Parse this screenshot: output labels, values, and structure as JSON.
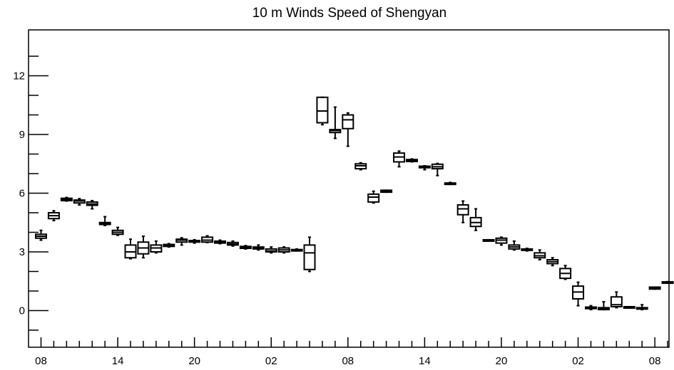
{
  "chart_data": {
    "type": "box",
    "title": "10 m Winds Speed of Shengyan",
    "xlabel": "",
    "ylabel": "",
    "ylim": [
      -2,
      14.3
    ],
    "yticks": [
      0,
      3,
      6,
      9,
      12
    ],
    "ytick_labels": [
      "0",
      "3",
      "6",
      "9",
      "12"
    ],
    "xticks": [
      "08",
      "14",
      "20",
      "02",
      "08",
      "14",
      "20",
      "02",
      "08"
    ],
    "xtick_positions": [
      0,
      6,
      12,
      18,
      24,
      30,
      36,
      42,
      48
    ],
    "xlim": [
      -1,
      49
    ],
    "grid": false,
    "boxes": [
      {
        "x": 0,
        "min": 3.6,
        "q1": 3.7,
        "median": 3.8,
        "q3": 3.9,
        "max": 4.1
      },
      {
        "x": 1,
        "min": 4.6,
        "q1": 4.7,
        "median": 4.85,
        "q3": 5.0,
        "max": 5.1
      },
      {
        "x": 2,
        "min": 5.6,
        "q1": 5.62,
        "median": 5.68,
        "q3": 5.74,
        "max": 5.78
      },
      {
        "x": 3,
        "min": 5.4,
        "q1": 5.5,
        "median": 5.6,
        "q3": 5.65,
        "max": 5.72
      },
      {
        "x": 4,
        "min": 5.2,
        "q1": 5.38,
        "median": 5.45,
        "q3": 5.55,
        "max": 5.62
      },
      {
        "x": 5,
        "min": 4.35,
        "q1": 4.4,
        "median": 4.45,
        "q3": 4.5,
        "max": 4.8
      },
      {
        "x": 6,
        "min": 3.85,
        "q1": 3.9,
        "median": 4.0,
        "q3": 4.1,
        "max": 4.25
      },
      {
        "x": 7,
        "min": 2.65,
        "q1": 2.7,
        "median": 3.0,
        "q3": 3.35,
        "max": 3.65
      },
      {
        "x": 8,
        "min": 2.7,
        "q1": 2.9,
        "median": 3.2,
        "q3": 3.5,
        "max": 3.8
      },
      {
        "x": 9,
        "min": 2.95,
        "q1": 3.0,
        "median": 3.2,
        "q3": 3.35,
        "max": 3.55
      },
      {
        "x": 10,
        "min": 3.25,
        "q1": 3.28,
        "median": 3.32,
        "q3": 3.38,
        "max": 3.42
      },
      {
        "x": 11,
        "min": 3.35,
        "q1": 3.5,
        "median": 3.6,
        "q3": 3.65,
        "max": 3.72
      },
      {
        "x": 12,
        "min": 3.45,
        "q1": 3.5,
        "median": 3.55,
        "q3": 3.58,
        "max": 3.62
      },
      {
        "x": 13,
        "min": 3.48,
        "q1": 3.5,
        "median": 3.6,
        "q3": 3.75,
        "max": 3.82
      },
      {
        "x": 14,
        "min": 3.42,
        "q1": 3.45,
        "median": 3.5,
        "q3": 3.55,
        "max": 3.6
      },
      {
        "x": 15,
        "min": 3.3,
        "q1": 3.35,
        "median": 3.4,
        "q3": 3.48,
        "max": 3.55
      },
      {
        "x": 16,
        "min": 3.15,
        "q1": 3.18,
        "median": 3.22,
        "q3": 3.28,
        "max": 3.32
      },
      {
        "x": 17,
        "min": 3.1,
        "q1": 3.15,
        "median": 3.2,
        "q3": 3.25,
        "max": 3.35
      },
      {
        "x": 18,
        "min": 2.95,
        "q1": 3.0,
        "median": 3.05,
        "q3": 3.15,
        "max": 3.25
      },
      {
        "x": 19,
        "min": 2.95,
        "q1": 3.0,
        "median": 3.1,
        "q3": 3.2,
        "max": 3.25
      },
      {
        "x": 20,
        "min": 3.05,
        "q1": 3.08,
        "median": 3.1,
        "q3": 3.12,
        "max": 3.15
      },
      {
        "x": 21,
        "min": 2.0,
        "q1": 2.1,
        "median": 2.95,
        "q3": 3.35,
        "max": 3.75
      },
      {
        "x": 22,
        "min": 9.5,
        "q1": 9.6,
        "median": 10.2,
        "q3": 10.9,
        "max": 10.9
      },
      {
        "x": 23,
        "min": 8.8,
        "q1": 9.1,
        "median": 9.2,
        "q3": 9.25,
        "max": 10.4
      },
      {
        "x": 24,
        "min": 8.4,
        "q1": 9.3,
        "median": 9.75,
        "q3": 10.0,
        "max": 10.1
      },
      {
        "x": 25,
        "min": 7.2,
        "q1": 7.25,
        "median": 7.4,
        "q3": 7.5,
        "max": 7.55
      },
      {
        "x": 26,
        "min": 5.5,
        "q1": 5.55,
        "median": 5.8,
        "q3": 5.95,
        "max": 6.1
      },
      {
        "x": 27,
        "min": 6.05,
        "q1": 6.05,
        "median": 6.1,
        "q3": 6.15,
        "max": 6.15
      },
      {
        "x": 28,
        "min": 7.35,
        "q1": 7.6,
        "median": 7.85,
        "q3": 8.05,
        "max": 8.15
      },
      {
        "x": 29,
        "min": 7.6,
        "q1": 7.62,
        "median": 7.68,
        "q3": 7.72,
        "max": 7.75
      },
      {
        "x": 30,
        "min": 7.2,
        "q1": 7.3,
        "median": 7.35,
        "q3": 7.38,
        "max": 7.4
      },
      {
        "x": 31,
        "min": 6.9,
        "q1": 7.25,
        "median": 7.35,
        "q3": 7.48,
        "max": 7.52
      },
      {
        "x": 32,
        "min": 6.45,
        "q1": 6.48,
        "median": 6.5,
        "q3": 6.52,
        "max": 6.55
      },
      {
        "x": 33,
        "min": 4.5,
        "q1": 4.9,
        "median": 5.2,
        "q3": 5.4,
        "max": 5.6
      },
      {
        "x": 34,
        "min": 4.1,
        "q1": 4.3,
        "median": 4.5,
        "q3": 4.75,
        "max": 5.2
      },
      {
        "x": 35,
        "min": 3.58,
        "q1": 3.6,
        "median": 3.6,
        "q3": 3.62,
        "max": 3.62
      },
      {
        "x": 36,
        "min": 3.35,
        "q1": 3.45,
        "median": 3.6,
        "q3": 3.7,
        "max": 3.75
      },
      {
        "x": 37,
        "min": 3.1,
        "q1": 3.15,
        "median": 3.25,
        "q3": 3.35,
        "max": 3.55
      },
      {
        "x": 38,
        "min": 3.05,
        "q1": 3.08,
        "median": 3.12,
        "q3": 3.15,
        "max": 3.18
      },
      {
        "x": 39,
        "min": 2.6,
        "q1": 2.7,
        "median": 2.8,
        "q3": 2.95,
        "max": 3.1
      },
      {
        "x": 40,
        "min": 2.3,
        "q1": 2.4,
        "median": 2.5,
        "q3": 2.6,
        "max": 2.7
      },
      {
        "x": 41,
        "min": 1.6,
        "q1": 1.65,
        "median": 1.9,
        "q3": 2.15,
        "max": 2.3
      },
      {
        "x": 42,
        "min": 0.25,
        "q1": 0.6,
        "median": 0.95,
        "q3": 1.25,
        "max": 1.45
      },
      {
        "x": 43,
        "min": 0.05,
        "q1": 0.1,
        "median": 0.12,
        "q3": 0.18,
        "max": 0.25
      },
      {
        "x": 44,
        "min": 0.05,
        "q1": 0.05,
        "median": 0.1,
        "q3": 0.15,
        "max": 0.45
      },
      {
        "x": 45,
        "min": 0.15,
        "q1": 0.2,
        "median": 0.3,
        "q3": 0.7,
        "max": 0.95
      },
      {
        "x": 46,
        "min": 0.15,
        "q1": 0.15,
        "median": 0.18,
        "q3": 0.2,
        "max": 0.2
      },
      {
        "x": 47,
        "min": 0.05,
        "q1": 0.08,
        "median": 0.1,
        "q3": 0.15,
        "max": 0.3
      },
      {
        "x": 48,
        "min": 1.1,
        "q1": 1.1,
        "median": 1.15,
        "q3": 1.2,
        "max": 1.2
      },
      {
        "x": 49,
        "min": 1.42,
        "q1": 1.43,
        "median": 1.45,
        "q3": 1.47,
        "max": 1.48
      }
    ]
  }
}
